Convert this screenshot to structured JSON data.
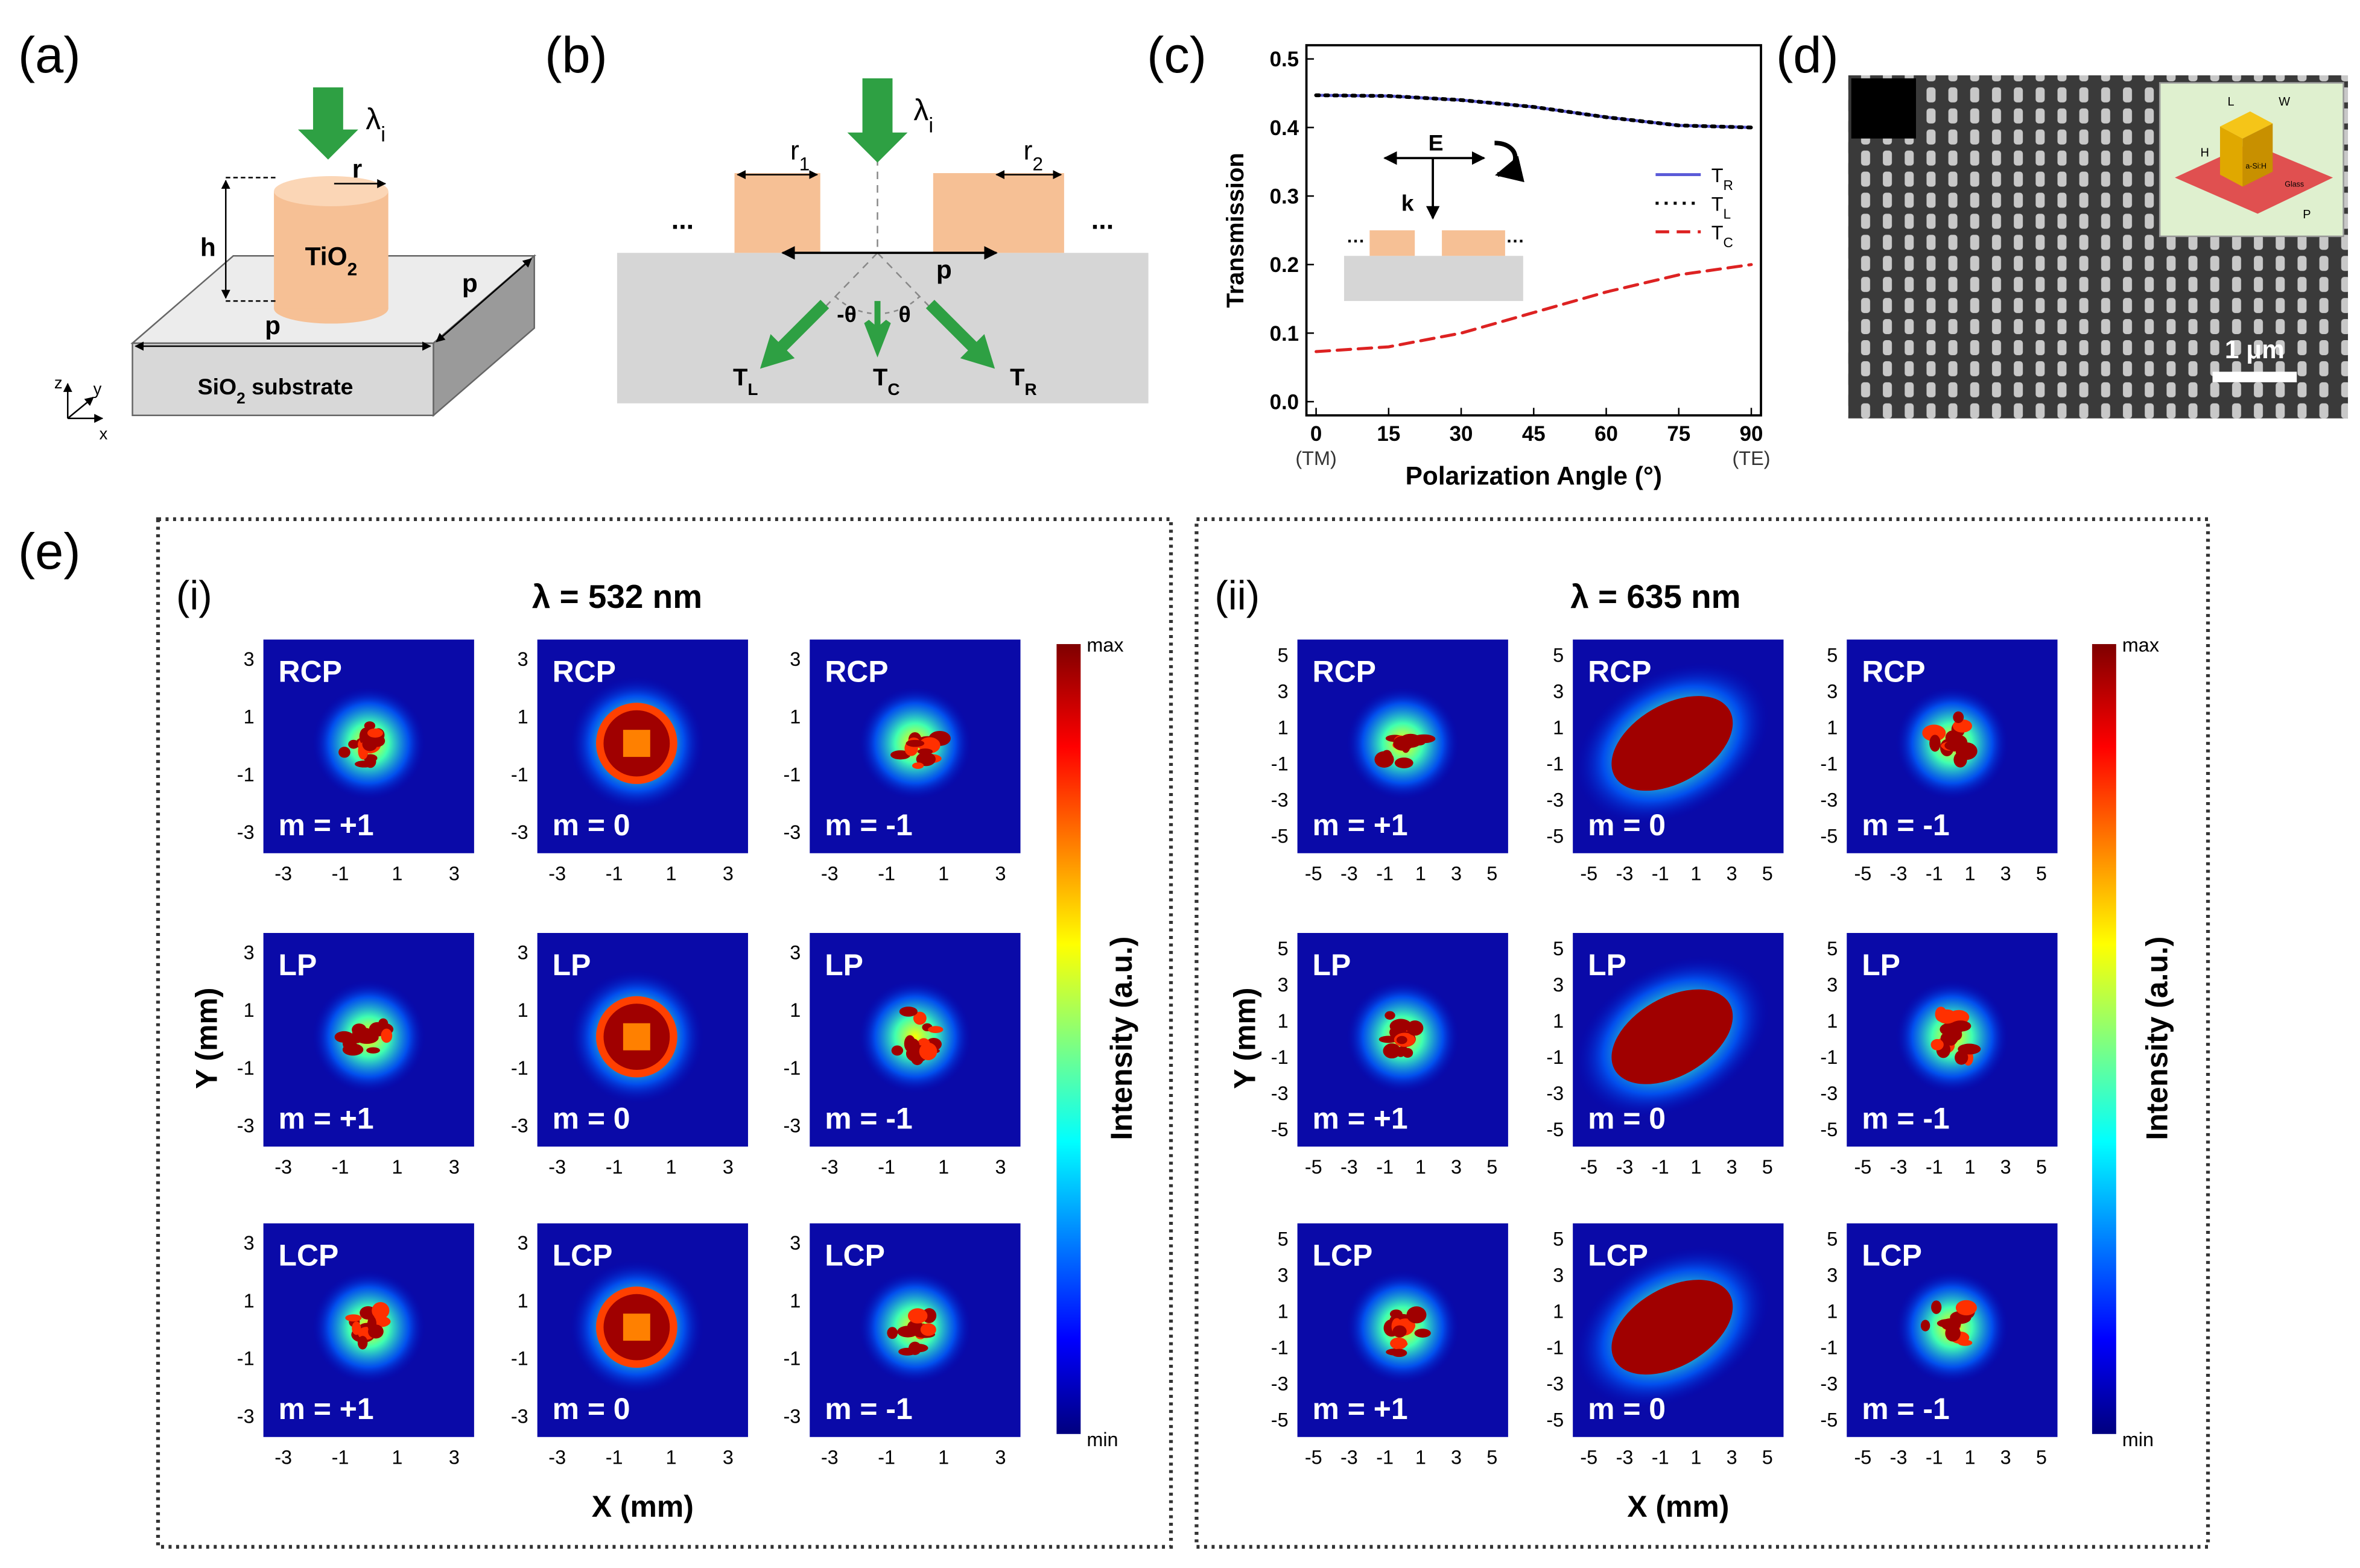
{
  "labels": {
    "a": "(a)",
    "b": "(b)",
    "c": "(c)",
    "d": "(d)",
    "e": "(e)"
  },
  "a": {
    "wavelength": "λi",
    "radius": "r",
    "height": "h",
    "pillar": "TiO2",
    "period_front": "p",
    "period_side": "p",
    "substrate": "SiO2 substrate",
    "axes": [
      "z",
      "y",
      "x"
    ]
  },
  "b": {
    "wavelength": "λi",
    "r1": "r1",
    "r2": "r2",
    "ellipsis_left": "...",
    "ellipsis_right": "...",
    "period": "p",
    "angle_left": "-θ",
    "angle_right": "θ",
    "orders": [
      "TL",
      "TC",
      "TR"
    ]
  },
  "chart_data": {
    "type": "line",
    "xlabel": "Polarization Angle (°)",
    "ylabel": "Transmission",
    "x": [
      0,
      15,
      30,
      45,
      60,
      75,
      90
    ],
    "xlim": [
      -2,
      92
    ],
    "xticks": [
      0,
      15,
      30,
      45,
      60,
      75,
      90
    ],
    "x_end_labels": [
      "(TM)",
      "(TE)"
    ],
    "ylim": [
      -0.02,
      0.52
    ],
    "yticks": [
      {
        "value": 0,
        "label": "0.0"
      },
      0.1,
      0.2,
      0.3,
      0.4,
      0.5
    ],
    "series": [
      {
        "name": "TR",
        "color": "#5a5ad8",
        "style": "solid",
        "values": [
          0.447,
          0.446,
          0.44,
          0.43,
          0.415,
          0.403,
          0.4
        ]
      },
      {
        "name": "TL",
        "color": "#000000",
        "style": "dotted",
        "values": [
          0.447,
          0.446,
          0.44,
          0.43,
          0.415,
          0.403,
          0.4
        ]
      },
      {
        "name": "TC",
        "color": "#dd2222",
        "style": "dashed",
        "values": [
          0.073,
          0.08,
          0.1,
          0.13,
          0.16,
          0.185,
          0.2
        ]
      }
    ],
    "inset": {
      "field": "E",
      "wavevector": "k"
    }
  },
  "d": {
    "scale_bar": "1 μm",
    "inset": [
      "L",
      "W",
      "H",
      "P",
      "a-Si:H",
      "Glass"
    ]
  },
  "e": {
    "panels": [
      {
        "label": "(i)",
        "title": "λ = 532 nm",
        "xlim": [
          -3.7,
          3.7
        ],
        "ylim": [
          -3.7,
          3.7
        ],
        "xticks": [
          -3,
          -1,
          1,
          3
        ],
        "yticks": [
          -3,
          -1,
          1,
          3
        ],
        "rows": [
          "RCP",
          "LP",
          "LCP"
        ],
        "orders": [
          "m = +1",
          "m = 0",
          "m = -1"
        ],
        "colorbar": {
          "max": "max",
          "min": "min",
          "label": "Intensity (a.u.)"
        },
        "xlabel": "X (mm)",
        "ylabel": "Y (mm)"
      },
      {
        "label": "(ii)",
        "title": "λ = 635 nm",
        "xlim": [
          -5.9,
          5.9
        ],
        "ylim": [
          -5.9,
          5.9
        ],
        "xticks": [
          -5,
          -3,
          -1,
          1,
          3,
          5
        ],
        "yticks": [
          -5,
          -3,
          -1,
          1,
          3,
          5
        ],
        "rows": [
          "RCP",
          "LP",
          "LCP"
        ],
        "orders": [
          "m = +1",
          "m = 0",
          "m = -1"
        ],
        "colorbar": {
          "max": "max",
          "min": "min",
          "label": "Intensity (a.u.)"
        },
        "xlabel": "X (mm)",
        "ylabel": "Y (mm)"
      }
    ]
  }
}
